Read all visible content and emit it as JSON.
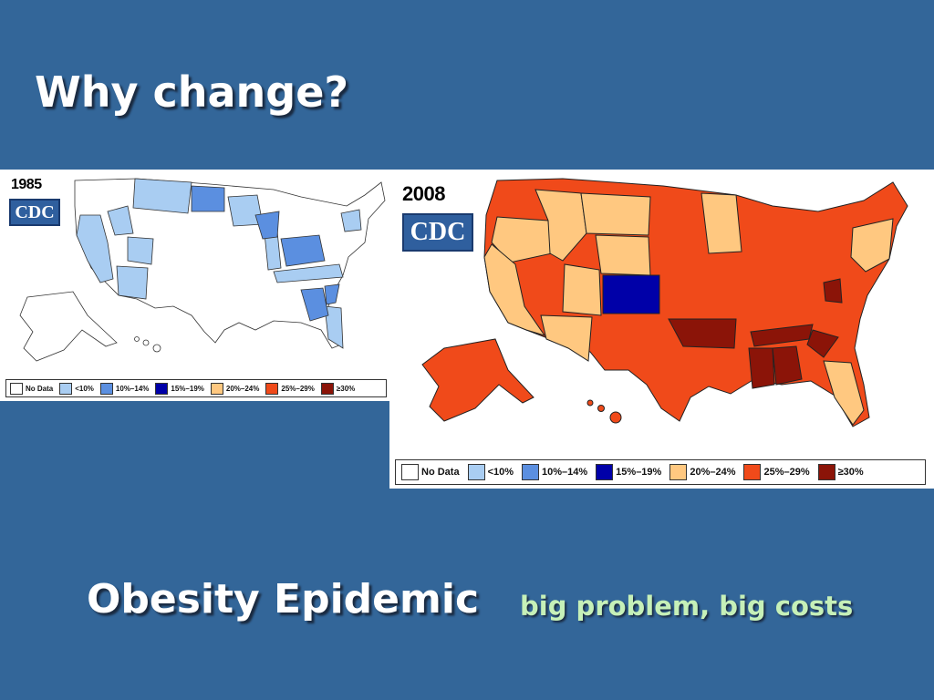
{
  "slide": {
    "title": "Why change?",
    "footer_title": "Obesity Epidemic",
    "footer_subtitle": "big problem, big costs"
  },
  "maps": [
    {
      "year": "1985",
      "logo_text": "CDC",
      "fills": {
        "nodata": "#ffffff",
        "lt10": "#a9cdf2",
        "b10_14": "#5b8fe0",
        "mainland_default": "#ffffff",
        "alaska": "#ffffff",
        "hawaii": "#ffffff"
      }
    },
    {
      "year": "2008",
      "logo_text": "CDC",
      "fills": {
        "b15_19": "#0000a8",
        "b20_24": "#ffc880",
        "b25_29": "#f04a1a",
        "ge30": "#8b1408",
        "mainland_default": "#f04a1a",
        "alaska": "#f04a1a",
        "hawaii": "#f04a1a"
      }
    }
  ],
  "legend": [
    {
      "label": "No Data",
      "color": "#ffffff"
    },
    {
      "label": "<10%",
      "color": "#a9cdf2"
    },
    {
      "label": "10%–14%",
      "color": "#5b8fe0"
    },
    {
      "label": "15%–19%",
      "color": "#0000a8"
    },
    {
      "label": "20%–24%",
      "color": "#ffc880"
    },
    {
      "label": "25%–29%",
      "color": "#f04a1a"
    },
    {
      "label": "≥30%",
      "color": "#8b1408"
    }
  ]
}
